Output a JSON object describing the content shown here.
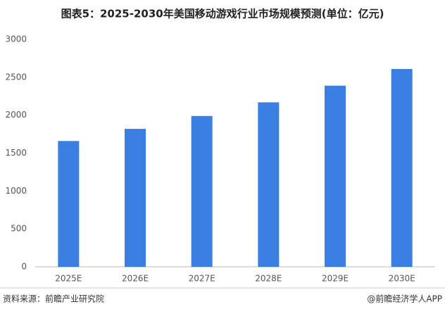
{
  "chart_data": {
    "type": "bar",
    "title": "图表5：2025-2030年美国移动游戏行业市场规模预测(单位：亿元)",
    "categories": [
      "2025E",
      "2026E",
      "2027E",
      "2028E",
      "2029E",
      "2030E"
    ],
    "values": [
      1660,
      1820,
      1990,
      2170,
      2390,
      2610
    ],
    "color": "#3b7fe3",
    "ylim": [
      0,
      3000
    ],
    "yticks": [
      0,
      500,
      1000,
      1500,
      2000,
      2500,
      3000
    ],
    "grid": false
  },
  "footer": {
    "source": "资料来源：前瞻产业研究院",
    "brand": "@前瞻经济学人APP"
  }
}
